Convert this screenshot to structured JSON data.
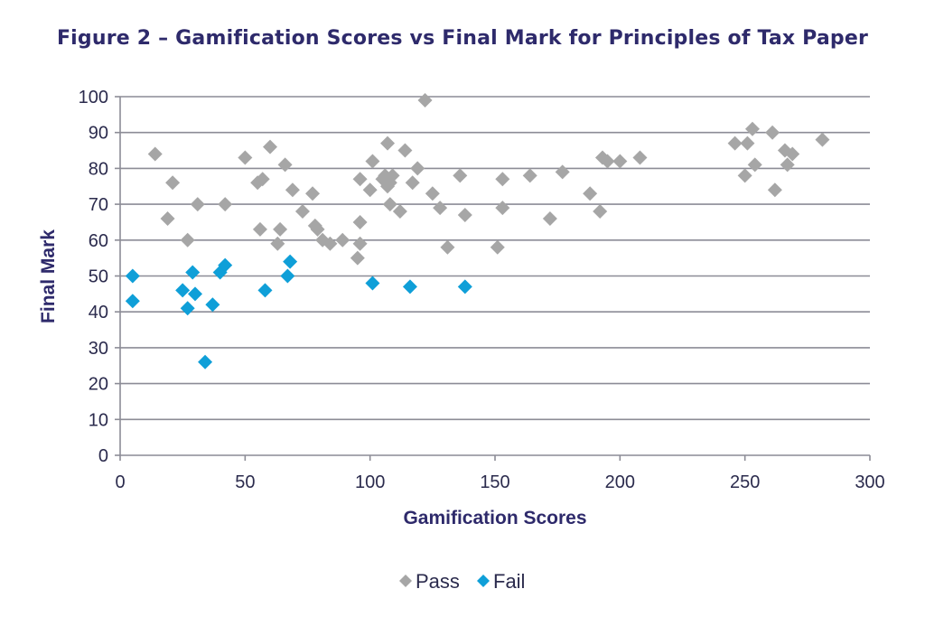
{
  "chart_data": {
    "type": "scatter",
    "title": "Figure 2 – Gamification Scores vs Final Mark for Principles of Tax Paper",
    "xlabel": "Gamification Scores",
    "ylabel": "Final Mark",
    "xlim": [
      0,
      300
    ],
    "ylim": [
      0,
      100
    ],
    "x_ticks": [
      0,
      50,
      100,
      150,
      200,
      250,
      300
    ],
    "y_ticks": [
      0,
      10,
      20,
      30,
      40,
      50,
      60,
      70,
      80,
      90,
      100
    ],
    "grid": "horizontal",
    "legend_position": "bottom-center",
    "series": [
      {
        "name": "Pass",
        "color": "#a6a6a6",
        "marker": "diamond",
        "points": [
          [
            14,
            84
          ],
          [
            19,
            66
          ],
          [
            21,
            76
          ],
          [
            27,
            60
          ],
          [
            31,
            70
          ],
          [
            42,
            70
          ],
          [
            50,
            83
          ],
          [
            55,
            76
          ],
          [
            56,
            63
          ],
          [
            57,
            77
          ],
          [
            60,
            86
          ],
          [
            63,
            59
          ],
          [
            64,
            63
          ],
          [
            66,
            81
          ],
          [
            69,
            74
          ],
          [
            73,
            68
          ],
          [
            77,
            73
          ],
          [
            78,
            64
          ],
          [
            79,
            63
          ],
          [
            81,
            60
          ],
          [
            84,
            59
          ],
          [
            89,
            60
          ],
          [
            95,
            55
          ],
          [
            96,
            65
          ],
          [
            96,
            59
          ],
          [
            96,
            77
          ],
          [
            100,
            74
          ],
          [
            101,
            82
          ],
          [
            105,
            77
          ],
          [
            106,
            78
          ],
          [
            107,
            87
          ],
          [
            107,
            75
          ],
          [
            108,
            76
          ],
          [
            108,
            70
          ],
          [
            109,
            78
          ],
          [
            112,
            68
          ],
          [
            114,
            85
          ],
          [
            117,
            76
          ],
          [
            119,
            80
          ],
          [
            122,
            99
          ],
          [
            125,
            73
          ],
          [
            128,
            69
          ],
          [
            131,
            58
          ],
          [
            136,
            78
          ],
          [
            138,
            67
          ],
          [
            151,
            58
          ],
          [
            153,
            69
          ],
          [
            153,
            77
          ],
          [
            164,
            78
          ],
          [
            172,
            66
          ],
          [
            177,
            79
          ],
          [
            188,
            73
          ],
          [
            192,
            68
          ],
          [
            193,
            83
          ],
          [
            195,
            82
          ],
          [
            200,
            82
          ],
          [
            208,
            83
          ],
          [
            246,
            87
          ],
          [
            250,
            78
          ],
          [
            251,
            87
          ],
          [
            253,
            91
          ],
          [
            254,
            81
          ],
          [
            261,
            90
          ],
          [
            262,
            74
          ],
          [
            266,
            85
          ],
          [
            267,
            81
          ],
          [
            269,
            84
          ],
          [
            281,
            88
          ]
        ]
      },
      {
        "name": "Fail",
        "color": "#0f9fd8",
        "marker": "diamond",
        "points": [
          [
            5,
            50
          ],
          [
            5,
            43
          ],
          [
            25,
            46
          ],
          [
            27,
            41
          ],
          [
            29,
            51
          ],
          [
            30,
            45
          ],
          [
            34,
            26
          ],
          [
            37,
            42
          ],
          [
            40,
            51
          ],
          [
            42,
            53
          ],
          [
            58,
            46
          ],
          [
            67,
            50
          ],
          [
            68,
            54
          ],
          [
            101,
            48
          ],
          [
            116,
            47
          ],
          [
            138,
            47
          ]
        ]
      }
    ]
  }
}
